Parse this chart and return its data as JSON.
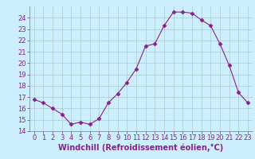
{
  "x": [
    0,
    1,
    2,
    3,
    4,
    5,
    6,
    7,
    8,
    9,
    10,
    11,
    12,
    13,
    14,
    15,
    16,
    17,
    18,
    19,
    20,
    21,
    22,
    23
  ],
  "y": [
    16.8,
    16.5,
    16.0,
    15.5,
    14.6,
    14.8,
    14.6,
    15.1,
    16.5,
    17.3,
    18.3,
    19.5,
    21.5,
    21.7,
    23.3,
    24.5,
    24.5,
    24.4,
    23.8,
    23.3,
    21.7,
    19.8,
    17.4,
    16.5
  ],
  "xlabel": "Windchill (Refroidissement éolien,°C)",
  "ylim": [
    14,
    25
  ],
  "xlim": [
    -0.5,
    23.5
  ],
  "yticks": [
    14,
    15,
    16,
    17,
    18,
    19,
    20,
    21,
    22,
    23,
    24
  ],
  "xticks": [
    0,
    1,
    2,
    3,
    4,
    5,
    6,
    7,
    8,
    9,
    10,
    11,
    12,
    13,
    14,
    15,
    16,
    17,
    18,
    19,
    20,
    21,
    22,
    23
  ],
  "line_color": "#882288",
  "marker": "D",
  "marker_size": 2.5,
  "bg_color": "#cceeff",
  "grid_color": "#aacccc",
  "label_color": "#882288",
  "tick_color": "#882288",
  "xlabel_fontsize": 7,
  "tick_fontsize": 6
}
